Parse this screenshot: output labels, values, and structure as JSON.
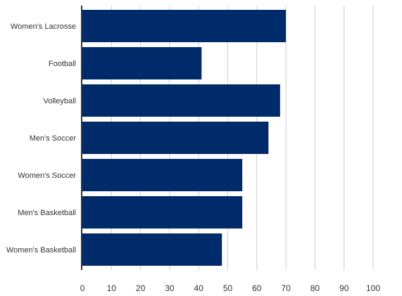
{
  "chart_data": {
    "type": "bar",
    "orientation": "horizontal",
    "title": "",
    "xlabel": "",
    "ylabel": "",
    "categories": [
      "Women's Lacrosse",
      "Football",
      "Volleyball",
      "Men's Soccer",
      "Women's Soccer",
      "Men's Basketball",
      "Women's Basketball"
    ],
    "values": [
      70,
      41,
      68,
      64,
      55,
      55,
      48
    ],
    "xlim": [
      0,
      100
    ],
    "xticks": [
      "0",
      "10",
      "20",
      "30",
      "40",
      "50",
      "60",
      "70",
      "80",
      "90",
      "100"
    ],
    "grid": true,
    "legend": "none",
    "colors": {
      "bar": "#002b6a",
      "grid": "#cccccc",
      "axis": "#333333"
    }
  }
}
